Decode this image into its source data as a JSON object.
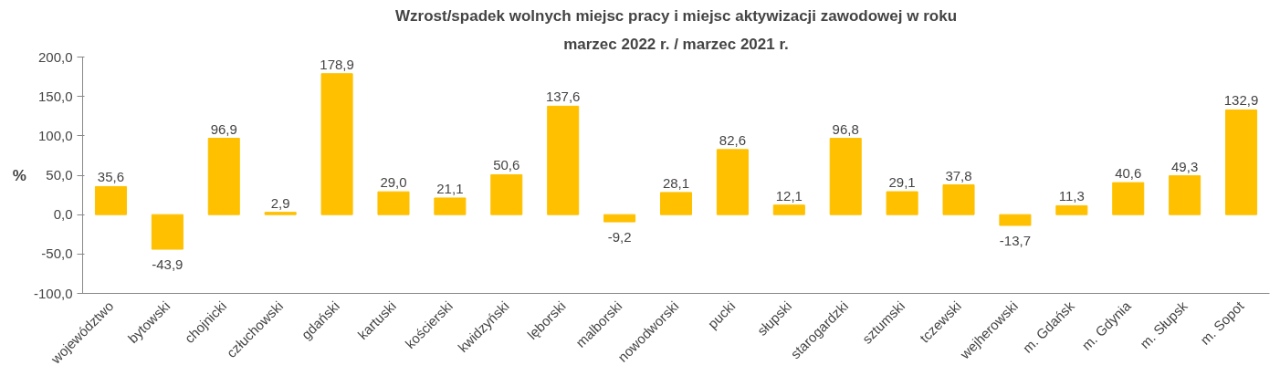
{
  "chart_data": {
    "type": "bar",
    "title": "Wzrost/spadek wolnych miejsc pracy i miejsc aktywizacji zawodowej w roku",
    "subtitle": "marzec 2022 r. / marzec 2021 r.",
    "ylabel": "%",
    "categories": [
      "województwo",
      "bytowski",
      "chojnicki",
      "człuchowski",
      "gdański",
      "kartuski",
      "kościerski",
      "kwidzyński",
      "lęborski",
      "malborski",
      "nowodworski",
      "pucki",
      "słupski",
      "starogardzki",
      "sztumski",
      "tczewski",
      "wejherowski",
      "m. Gdańsk",
      "m. Gdynia",
      "m. Słupsk",
      "m. Sopot"
    ],
    "values": [
      35.6,
      -43.9,
      96.9,
      2.9,
      178.9,
      29.0,
      21.1,
      50.6,
      137.6,
      -9.2,
      28.1,
      82.6,
      12.1,
      96.8,
      29.1,
      37.8,
      -13.7,
      11.3,
      40.6,
      49.3,
      132.9
    ],
    "value_labels": [
      "35,6",
      "-43,9",
      "96,9",
      "2,9",
      "178,9",
      "29,0",
      "21,1",
      "50,6",
      "137,6",
      "-9,2",
      "28,1",
      "82,6",
      "12,1",
      "96,8",
      "29,1",
      "37,8",
      "-13,7",
      "11,3",
      "40,6",
      "49,3",
      "132,9"
    ],
    "color": "#ffc000",
    "ylim": [
      -100,
      200
    ],
    "yticks": [
      {
        "value": -100,
        "label": "-100,0"
      },
      {
        "value": -50,
        "label": "-50,0"
      },
      {
        "value": 0,
        "label": "0,0"
      },
      {
        "value": 50,
        "label": "50,0"
      },
      {
        "value": 100,
        "label": "100,0"
      },
      {
        "value": 150,
        "label": "150,0"
      },
      {
        "value": 200,
        "label": "200,0"
      }
    ],
    "grid": false
  }
}
